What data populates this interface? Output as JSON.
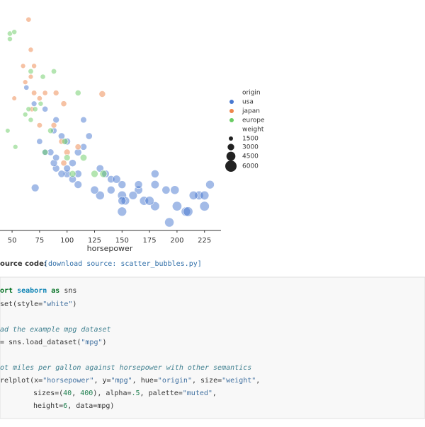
{
  "chart_data": {
    "type": "scatter",
    "xlabel": "horsepower",
    "hue_label": "origin",
    "size_label": "weight",
    "xlim": [
      39,
      240
    ],
    "xticks": [
      50,
      75,
      100,
      125,
      150,
      175,
      200,
      225
    ],
    "ylim": [
      7.5,
      48
    ],
    "size_legend": [
      1500,
      3000,
      4500,
      6000
    ],
    "alpha": 0.5,
    "series": [
      {
        "name": "usa",
        "color": "#4878d0",
        "x": [
          150,
          165,
          150,
          140,
          198,
          220,
          215,
          225,
          190,
          170,
          160,
          150,
          208,
          180,
          200,
          193,
          210,
          230,
          225,
          175,
          153,
          150,
          140,
          130,
          125,
          110,
          100,
          105,
          95,
          90,
          110,
          88,
          100,
          105,
          90,
          85,
          95,
          100,
          110,
          120,
          115,
          90,
          80,
          75,
          88,
          70,
          63,
          80,
          71,
          115,
          130,
          145,
          165,
          180,
          135,
          180
        ],
        "y": [
          14,
          15,
          16,
          17,
          15,
          14,
          14,
          14,
          15,
          13,
          14,
          11,
          11,
          12,
          12,
          9,
          11,
          16,
          12,
          13,
          13,
          13,
          15,
          14,
          15,
          16,
          18,
          17,
          18,
          19,
          18,
          20,
          19,
          20,
          21,
          22,
          25,
          24,
          22,
          25,
          28,
          28,
          22,
          24,
          26,
          31,
          34,
          30,
          15.4,
          23,
          19,
          17,
          16,
          16,
          18,
          18
        ],
        "size": [
          4400,
          4000,
          3800,
          3500,
          4300,
          4350,
          4300,
          4400,
          3900,
          4400,
          4100,
          4600,
          4600,
          4500,
          4800,
          4700,
          4900,
          4200,
          4900,
          4500,
          4100,
          3900,
          3800,
          4300,
          3900,
          3700,
          3600,
          3500,
          3400,
          3300,
          3500,
          3300,
          3200,
          3400,
          3100,
          3000,
          3000,
          3200,
          3400,
          3000,
          2700,
          2800,
          3000,
          2600,
          2700,
          2300,
          2100,
          2500,
          3700,
          3000,
          3500,
          3900,
          3800,
          4000,
          3600,
          3800
        ]
      },
      {
        "name": "japan",
        "color": "#ee854a",
        "x": [
          65,
          67,
          60,
          67,
          70,
          75,
          80,
          90,
          97,
          132,
          88,
          95,
          75,
          68,
          97,
          110,
          100,
          70,
          62,
          52
        ],
        "y": [
          46.6,
          41,
          38,
          36,
          33,
          32,
          33,
          33,
          31,
          32.8,
          27,
          24,
          27,
          30,
          20,
          23,
          22,
          38,
          35,
          32
        ],
        "size": [
          2100,
          2000,
          1900,
          1900,
          2200,
          2100,
          2100,
          2400,
          2500,
          2900,
          2400,
          2400,
          2200,
          2100,
          2600,
          2600,
          2800,
          2000,
          1900,
          1800
        ]
      },
      {
        "name": "europe",
        "color": "#6acc64",
        "x": [
          48,
          52,
          48,
          65,
          46,
          67,
          76,
          88,
          78,
          71,
          110,
          85,
          67,
          80,
          98,
          100,
          115,
          133,
          125,
          105,
          62,
          53
        ],
        "y": [
          44,
          44.3,
          43,
          30,
          26,
          37,
          31,
          37,
          36,
          30,
          33,
          26,
          28,
          22,
          24,
          21,
          21,
          18,
          18,
          18,
          29,
          23
        ],
        "size": [
          2100,
          2000,
          2000,
          2000,
          1800,
          2200,
          2000,
          2200,
          2100,
          2100,
          2500,
          2400,
          2000,
          2500,
          2800,
          2800,
          3100,
          3400,
          3300,
          3000,
          1900,
          1900
        ]
      }
    ]
  },
  "source_label": "ource code:",
  "source_link": "[download source: scatter_bubbles.py]",
  "code": {
    "lines": [
      [
        {
          "text": "ort ",
          "color": "#007020",
          "weight": "bold"
        },
        {
          "text": "seaborn",
          "color": "#0e84b5",
          "weight": "bold"
        },
        {
          "text": " as ",
          "color": "#007020",
          "weight": "bold"
        },
        {
          "text": "sns"
        }
      ],
      [
        {
          "text": "set(style="
        },
        {
          "text": "\"white\"",
          "color": "#4070a0"
        },
        {
          "text": ")"
        }
      ],
      [
        {
          "text": "ad the example mpg dataset",
          "color": "#408090",
          "style": "italic"
        }
      ],
      [
        {
          "text": "= sns.load_dataset("
        },
        {
          "text": "\"mpg\"",
          "color": "#4070a0"
        },
        {
          "text": ")"
        }
      ],
      [
        {
          "text": "ot miles per gallon against horsepower with other semantics",
          "color": "#408090",
          "style": "italic"
        }
      ],
      [
        {
          "text": "relplot(x="
        },
        {
          "text": "\"horsepower\"",
          "color": "#4070a0"
        },
        {
          "text": ", y="
        },
        {
          "text": "\"mpg\"",
          "color": "#4070a0"
        },
        {
          "text": ", hue="
        },
        {
          "text": "\"origin\"",
          "color": "#4070a0"
        },
        {
          "text": ", size="
        },
        {
          "text": "\"weight\"",
          "color": "#4070a0"
        },
        {
          "text": ","
        }
      ],
      [
        {
          "text": "sizes=("
        },
        {
          "text": "40",
          "color": "#208050"
        },
        {
          "text": ", "
        },
        {
          "text": "400",
          "color": "#208050"
        },
        {
          "text": "), alpha="
        },
        {
          "text": ".5",
          "color": "#208050"
        },
        {
          "text": ", palette="
        },
        {
          "text": "\"muted\"",
          "color": "#4070a0"
        },
        {
          "text": ","
        }
      ],
      [
        {
          "text": "height="
        },
        {
          "text": "6",
          "color": "#208050"
        },
        {
          "text": ", data=mpg)"
        }
      ]
    ]
  }
}
